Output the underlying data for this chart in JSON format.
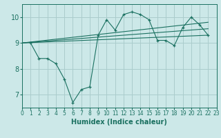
{
  "xlabel": "Humidex (Indice chaleur)",
  "bg_color": "#cce8e8",
  "grid_color": "#aacccc",
  "line_color": "#1a7060",
  "xlim": [
    0,
    23
  ],
  "ylim": [
    6.5,
    10.5
  ],
  "yticks": [
    7,
    8,
    9,
    10
  ],
  "xticks": [
    0,
    1,
    2,
    3,
    4,
    5,
    6,
    7,
    8,
    9,
    10,
    11,
    12,
    13,
    14,
    15,
    16,
    17,
    18,
    19,
    20,
    21,
    22,
    23
  ],
  "main_x": [
    1,
    2,
    3,
    4,
    5,
    6,
    7,
    8,
    9,
    10,
    11,
    12,
    13,
    14,
    15,
    16,
    17,
    18,
    19,
    20,
    21,
    22
  ],
  "main_y": [
    9.0,
    8.4,
    8.4,
    8.2,
    7.6,
    6.7,
    7.2,
    7.3,
    9.3,
    9.9,
    9.5,
    10.1,
    10.2,
    10.1,
    9.9,
    9.1,
    9.1,
    8.9,
    9.6,
    10.0,
    9.7,
    9.3
  ],
  "trend_lines": [
    {
      "x": [
        0,
        22
      ],
      "y": [
        9.0,
        9.3
      ]
    },
    {
      "x": [
        0,
        22
      ],
      "y": [
        9.0,
        9.55
      ]
    },
    {
      "x": [
        0,
        22
      ],
      "y": [
        9.0,
        9.8
      ]
    }
  ]
}
